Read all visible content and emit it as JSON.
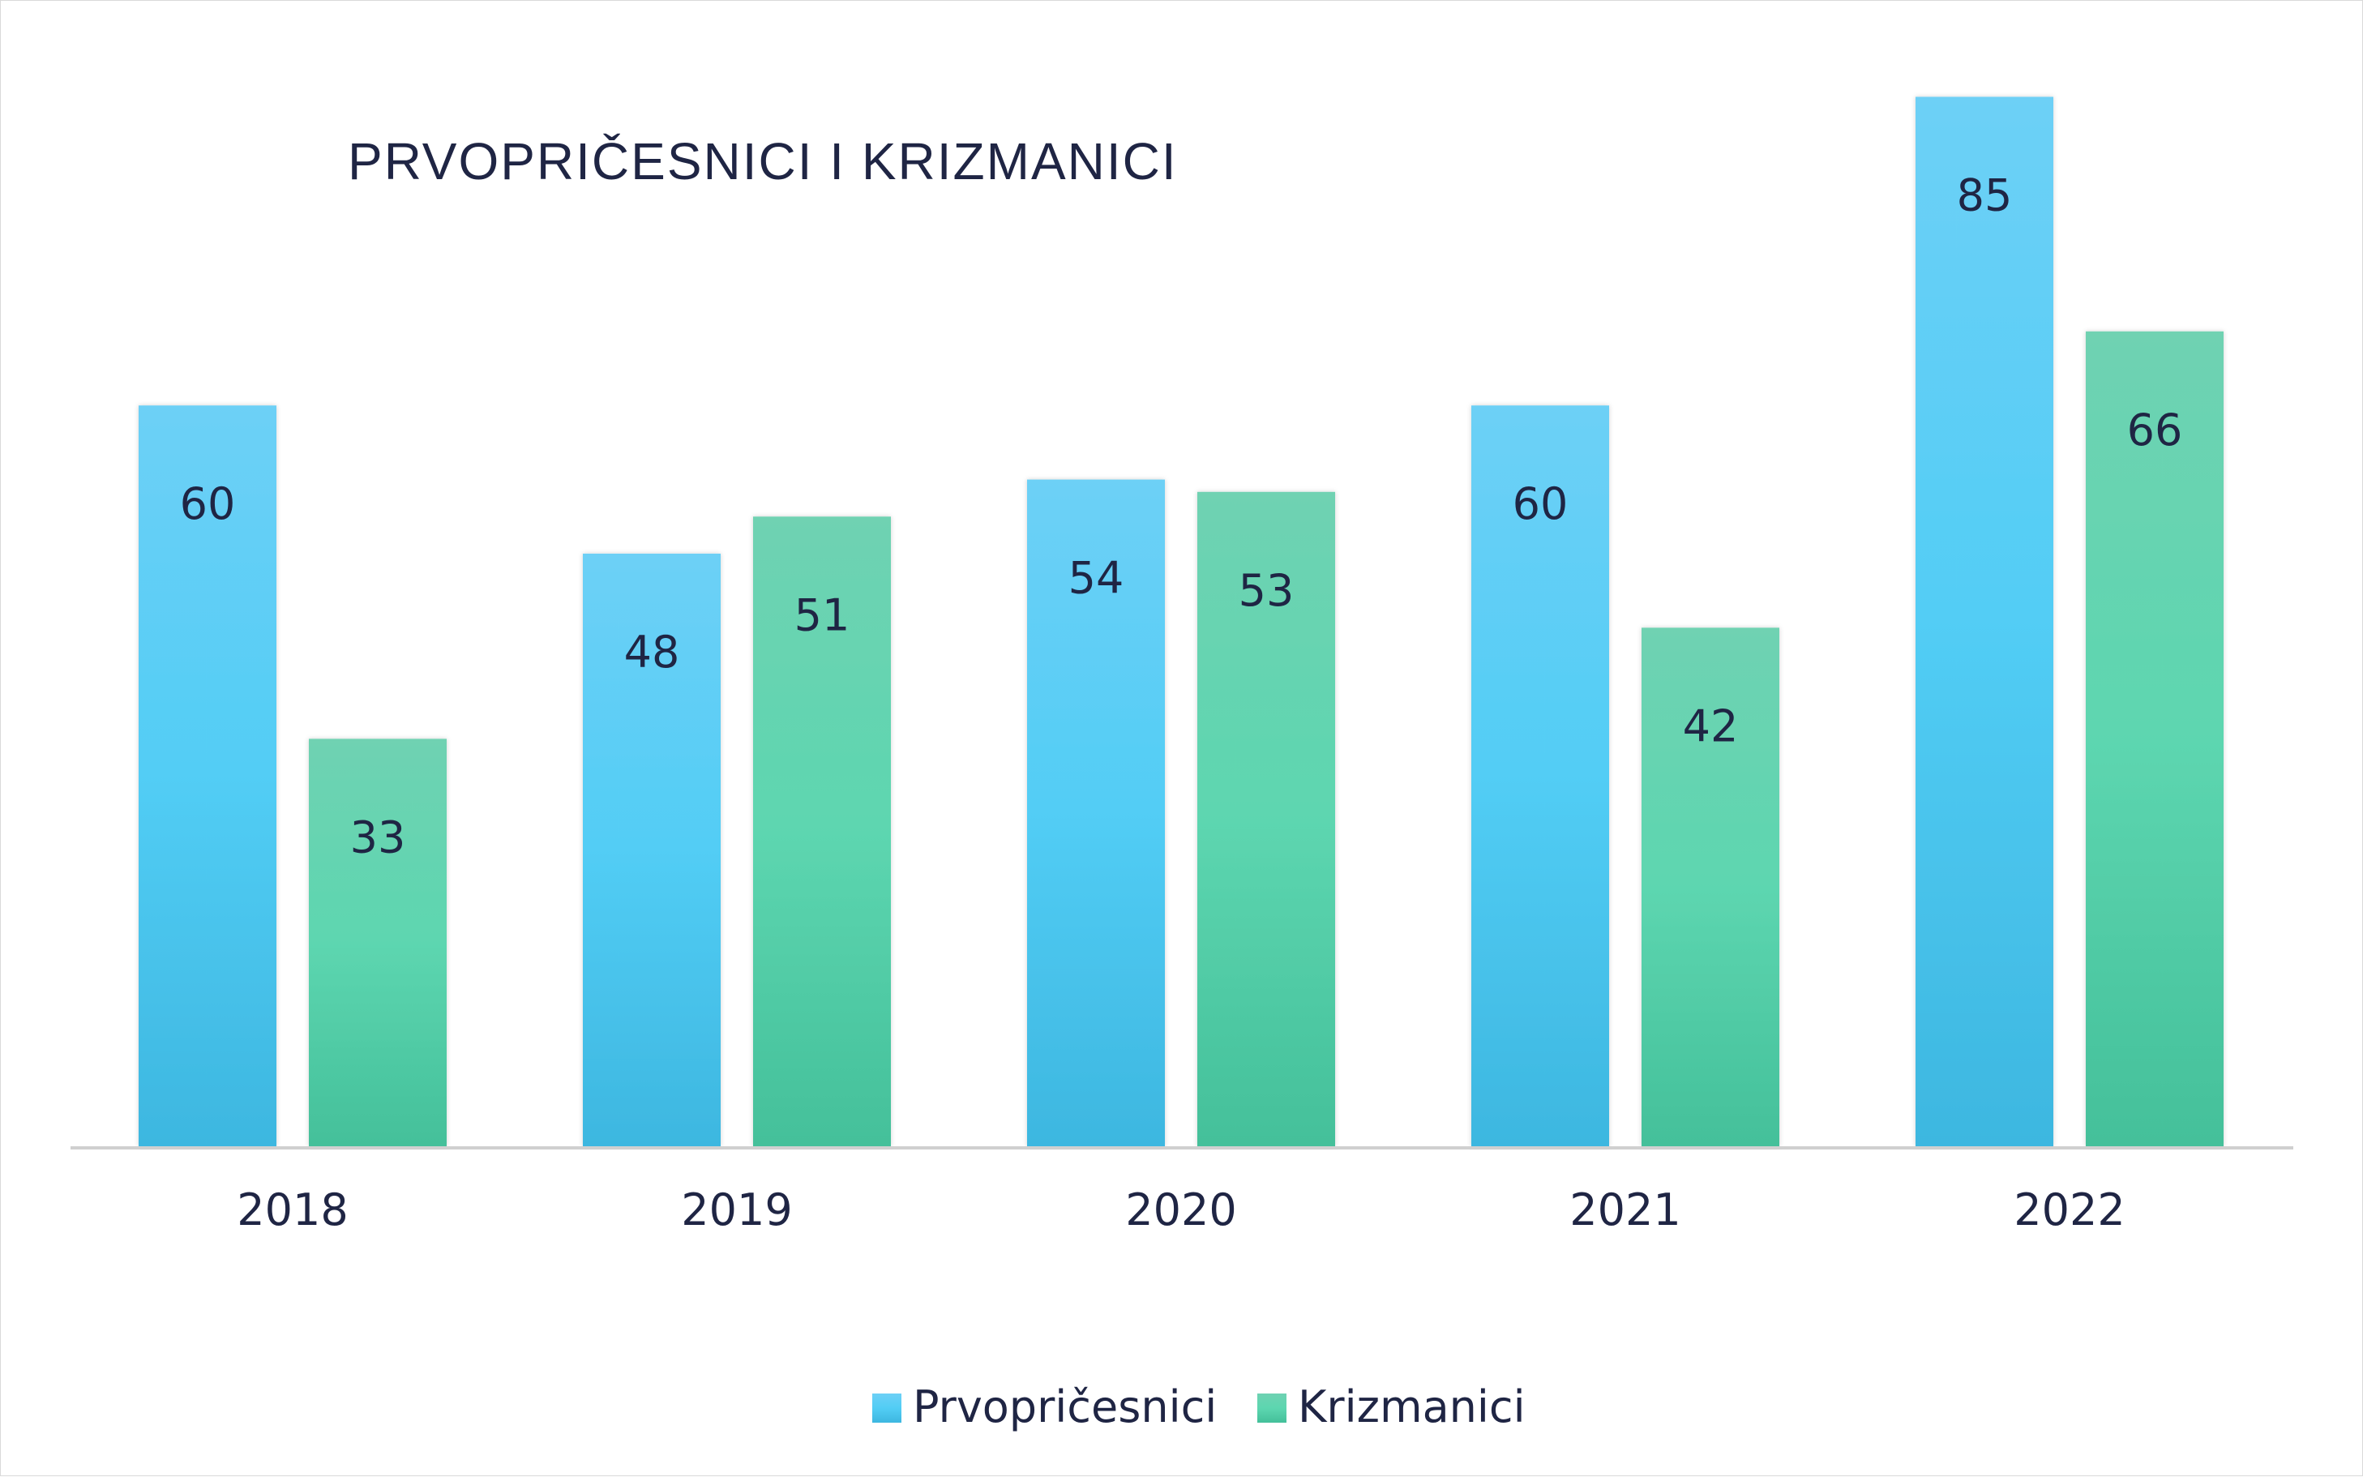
{
  "chart_data": {
    "type": "bar",
    "title": "PRVOPRIČESNICI I KRIZMANICI",
    "categories": [
      "2018",
      "2019",
      "2020",
      "2021",
      "2022"
    ],
    "series": [
      {
        "name": "Prvopričesnici",
        "values": [
          60,
          48,
          54,
          60,
          85
        ],
        "color": "#4fc9f0"
      },
      {
        "name": "Krizmanici",
        "values": [
          33,
          51,
          53,
          42,
          66
        ],
        "color": "#52cfa6"
      }
    ],
    "ylim": [
      0,
      85
    ],
    "grid": false,
    "legend": "bottom",
    "data_labels": true
  }
}
